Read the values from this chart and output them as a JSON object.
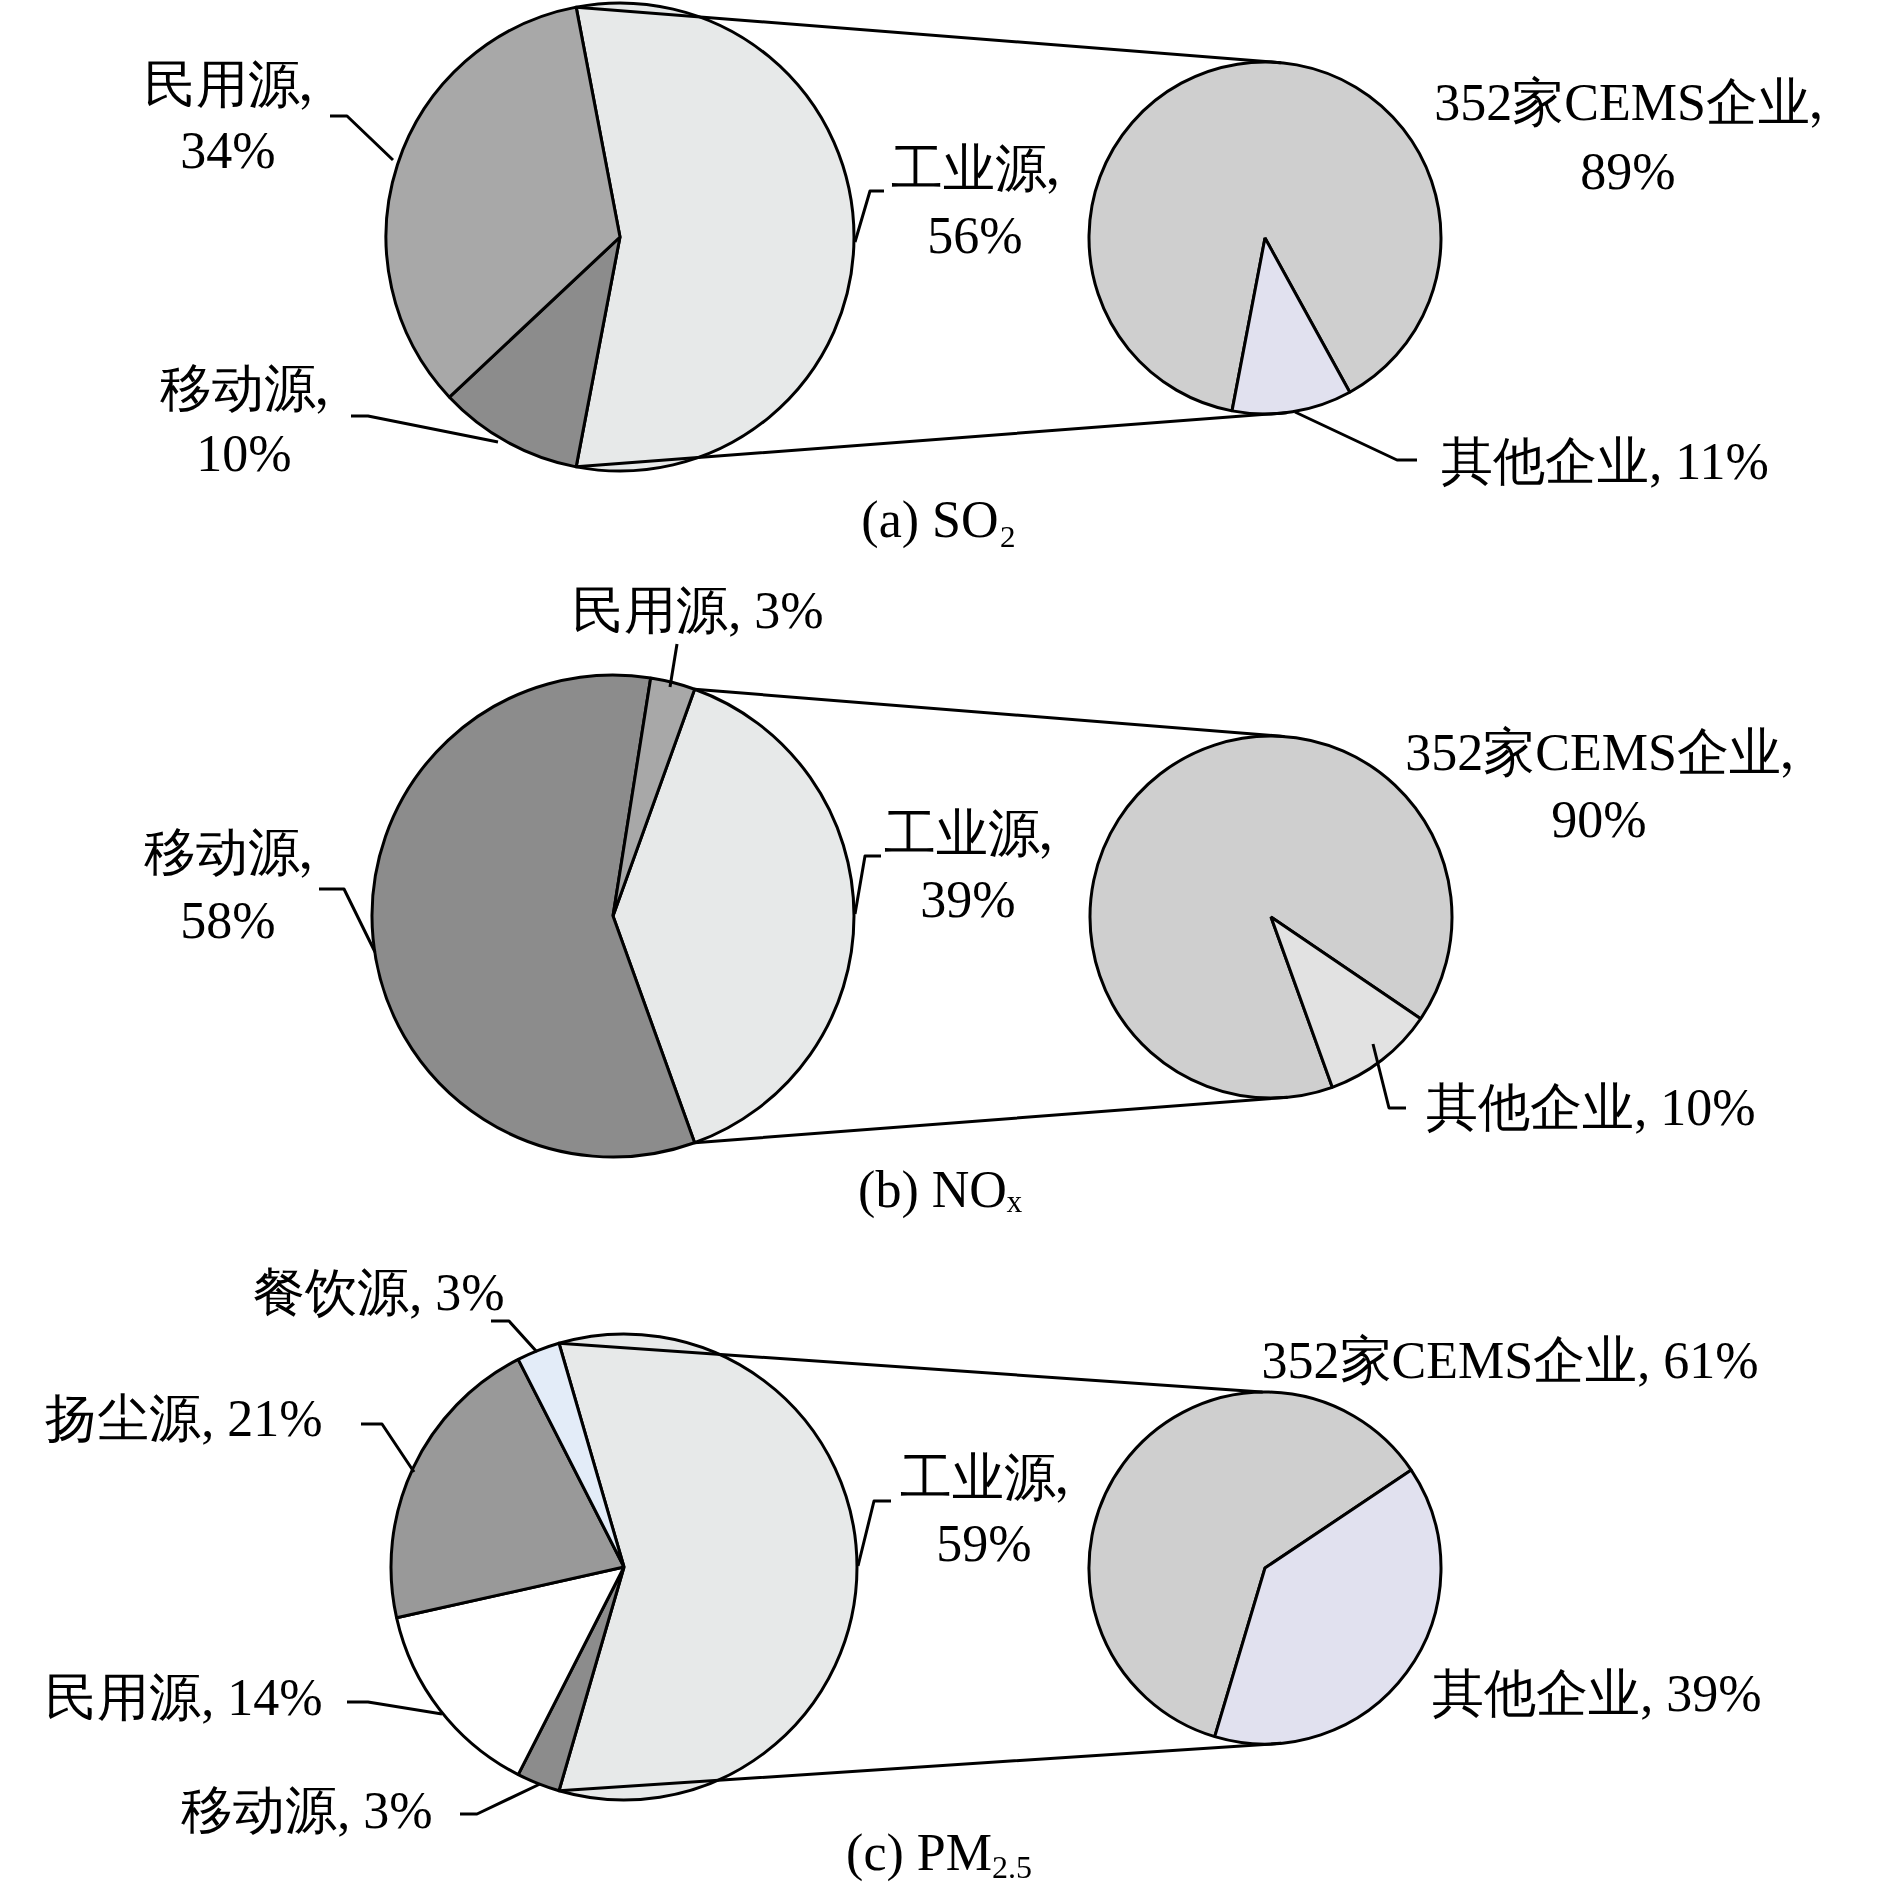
{
  "chart_data": [
    {
      "type": "pie",
      "title": "(a) SO₂",
      "categories": [
        "工业源",
        "移动源",
        "民用源"
      ],
      "values": [
        56,
        10,
        34
      ],
      "colors": [
        "#e7e9e9",
        "#8c8c8c",
        "#a8a8a8"
      ],
      "value_labels": [
        "56%",
        "10%",
        "34%"
      ]
    },
    {
      "type": "pie",
      "categories": [
        "352家CEMS企业",
        "其他企业"
      ],
      "values": [
        89,
        11
      ],
      "colors": [
        "#cfcfcf",
        "#e1e1ef"
      ],
      "value_labels": [
        "89%",
        "11%"
      ]
    },
    {
      "type": "pie",
      "title": "(b) NOₓ",
      "categories": [
        "工业源",
        "移动源",
        "民用源"
      ],
      "values": [
        39,
        58,
        3
      ],
      "colors": [
        "#e7e9e9",
        "#8c8c8c",
        "#a8a8a8"
      ],
      "value_labels": [
        "39%",
        "58%",
        "3%"
      ]
    },
    {
      "type": "pie",
      "categories": [
        "352家CEMS企业",
        "其他企业"
      ],
      "values": [
        90,
        10
      ],
      "colors": [
        "#cfcfcf",
        "#e2e2e2"
      ],
      "value_labels": [
        "90%",
        "10%"
      ]
    },
    {
      "type": "pie",
      "title": "(c) PM$_{2.5}$",
      "categories": [
        "工业源",
        "移动源",
        "民用源",
        "扬尘源",
        "餐饮源"
      ],
      "values": [
        59,
        3,
        14,
        21,
        3
      ],
      "colors": [
        "#e7e9e9",
        "#8c8c8c",
        "#ffffff",
        "#999999",
        "#e3ecf8"
      ],
      "value_labels": [
        "59%",
        "3%",
        "14%",
        "21%",
        "3%"
      ]
    },
    {
      "type": "pie",
      "categories": [
        "352家CEMS企业",
        "其他企业"
      ],
      "values": [
        61,
        39
      ],
      "colors": [
        "#cfcfcf",
        "#e1e1ef"
      ],
      "value_labels": [
        "61%",
        "39%"
      ]
    }
  ]
}
